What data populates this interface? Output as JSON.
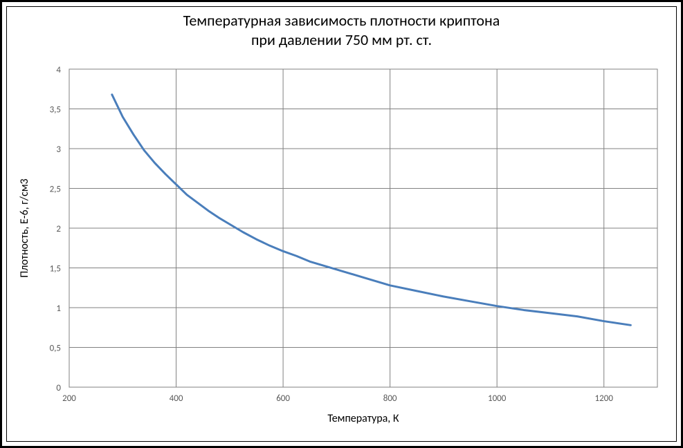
{
  "chart": {
    "type": "line",
    "title_line1": "Температурная зависимость плотности криптона",
    "title_line2": "при давлении 750 мм рт. ст.",
    "title_fontsize": 22,
    "title_color": "#000000",
    "xlabel": "Температура, К",
    "ylabel": "Плотность, E-6, г/см3",
    "axis_label_fontsize": 16,
    "axis_label_color": "#000000",
    "tick_label_fontsize": 13,
    "tick_label_color": "#595959",
    "background_color": "#ffffff",
    "grid_color": "#808080",
    "border_color": "#808080",
    "xlim": [
      200,
      1300
    ],
    "xtick_step": 200,
    "xticks": [
      200,
      400,
      600,
      800,
      1000,
      1200
    ],
    "ylim": [
      0,
      4
    ],
    "ytick_step": 0.5,
    "yticks": [
      "0",
      "0,5",
      "1",
      "1,5",
      "2",
      "2,5",
      "3",
      "3,5",
      "4"
    ],
    "ytick_values": [
      0,
      0.5,
      1,
      1.5,
      2,
      2.5,
      3,
      3.5,
      4
    ],
    "series": {
      "color": "#4a7ebb",
      "line_width": 3,
      "x": [
        280,
        300,
        320,
        340,
        360,
        380,
        400,
        420,
        440,
        460,
        480,
        500,
        525,
        550,
        575,
        600,
        625,
        650,
        675,
        700,
        750,
        800,
        850,
        900,
        950,
        1000,
        1050,
        1100,
        1150,
        1200,
        1250
      ],
      "y": [
        3.68,
        3.4,
        3.18,
        2.98,
        2.82,
        2.68,
        2.55,
        2.42,
        2.32,
        2.22,
        2.13,
        2.05,
        1.95,
        1.86,
        1.78,
        1.71,
        1.65,
        1.58,
        1.53,
        1.48,
        1.38,
        1.28,
        1.21,
        1.14,
        1.08,
        1.02,
        0.97,
        0.93,
        0.89,
        0.83,
        0.78
      ]
    }
  }
}
